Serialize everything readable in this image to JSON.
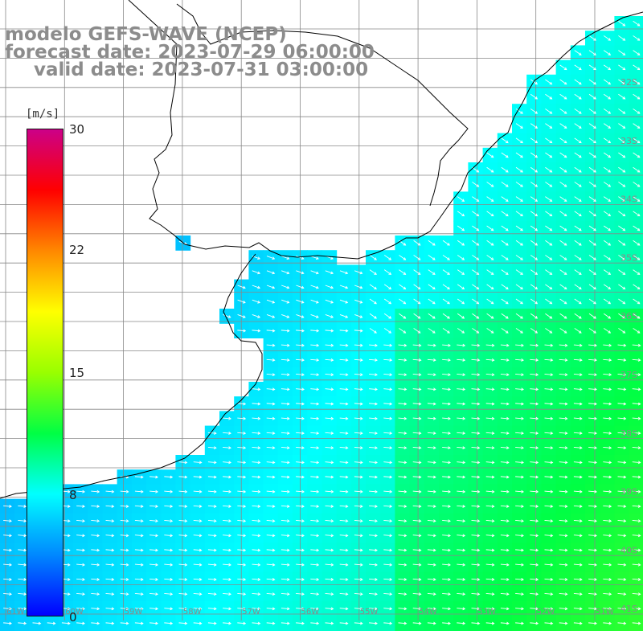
{
  "title": {
    "line1": "modelo GEFS-WAVE (NCEP)",
    "line2": "forecast date: 2023-07-29 06:00:00",
    "line3": "valid date: 2023-07-31 03:00:00"
  },
  "colorbar": {
    "unit": "[m/s]",
    "ticks": [
      "30",
      "22",
      "15",
      "8",
      "0"
    ],
    "tick_values": [
      30,
      22,
      15,
      8,
      0
    ],
    "range": [
      0,
      30
    ],
    "colors": [
      "#0000ff",
      "#0088ff",
      "#00ffff",
      "#00ff44",
      "#99ff00",
      "#ffff00",
      "#ff8800",
      "#ff0000",
      "#cc0088"
    ]
  },
  "map": {
    "land_color": "#ffffff",
    "grid_color": "#888888",
    "lat_labels": [
      "32S",
      "33S",
      "34S",
      "35S",
      "36S",
      "37S",
      "38S",
      "39S",
      "40S",
      "41S"
    ],
    "lon_labels": [
      "61W",
      "60W",
      "59W",
      "58W",
      "57W",
      "56W",
      "55W",
      "54W",
      "53W",
      "52W",
      "51W"
    ],
    "wind_direction": "W to E over the Rio de la Plata and shelf; NW to SE along the Uruguay/Brazil coast"
  }
}
